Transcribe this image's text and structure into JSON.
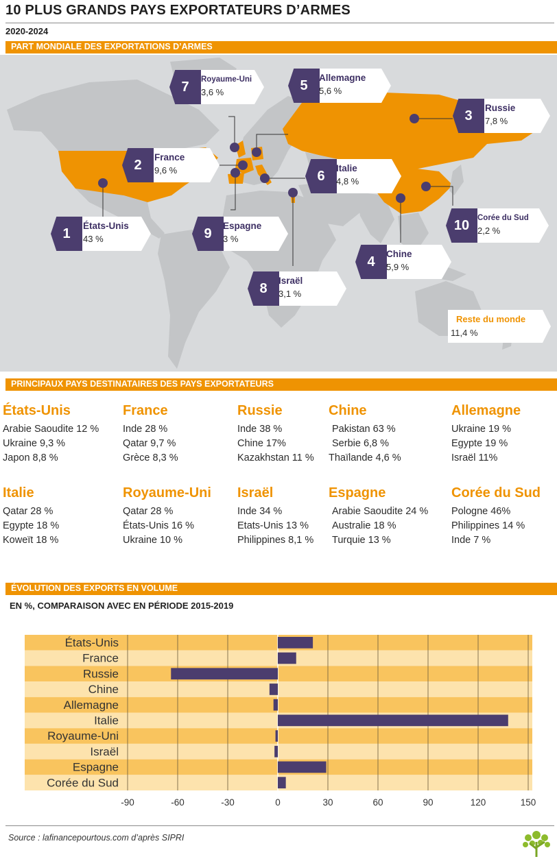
{
  "header": {
    "title": "10 PLUS GRANDS PAYS EXPORTATEURS D’ARMES",
    "period": "2020-2024"
  },
  "sections": {
    "share": "PART MONDIALE DES EXPORTATIONS D’ARMES",
    "destinations": "PRINCIPAUX PAYS DESTINATAIRES DES PAYS EXPORTATEURS",
    "evolution": "ÉVOLUTION DES EXPORTS EN VOLUME",
    "evolution_sub": "EN %, COMPARAISON AVEC EN PÉRIODE 2015-2019"
  },
  "map": {
    "colors": {
      "exporter": "#ef9302",
      "land": "#c3c5c7",
      "sea": "#d8dadc",
      "badge": "#4b3d6e"
    },
    "callouts": [
      {
        "rank": "1",
        "country": "États-Unis",
        "share": "43 %"
      },
      {
        "rank": "2",
        "country": "France",
        "share": "9,6 %"
      },
      {
        "rank": "3",
        "country": "Russie",
        "share": "7,8 %"
      },
      {
        "rank": "4",
        "country": "Chine",
        "share": "5,9 %"
      },
      {
        "rank": "5",
        "country": "Allemagne",
        "share": "5,6 %"
      },
      {
        "rank": "6",
        "country": "Italie",
        "share": "4,8 %"
      },
      {
        "rank": "7",
        "country": "Royaume-Uni",
        "share": "3,6 %"
      },
      {
        "rank": "8",
        "country": "Israël",
        "share": "3,1 %"
      },
      {
        "rank": "9",
        "country": "Espagne",
        "share": "3 %"
      },
      {
        "rank": "10",
        "country": "Corée du Sud",
        "share": "2,2 %"
      }
    ],
    "rest": {
      "label": "Reste du monde",
      "share": "11,4 %"
    }
  },
  "destinations": [
    {
      "exporter": "États-Unis",
      "rows": [
        "Arabie Saoudite 12 %",
        "Ukraine 9,3 %",
        "Japon 8,8 %"
      ]
    },
    {
      "exporter": "France",
      "rows": [
        "Inde 28 %",
        "Qatar 9,7 %",
        "Grèce 8,3 %"
      ]
    },
    {
      "exporter": "Russie",
      "rows": [
        "Inde 38 %",
        "Chine 17%",
        "Kazakhstan 11 %"
      ]
    },
    {
      "exporter": "Chine",
      "rows": [
        "Pakistan 63 %",
        "Serbie 6,8 %",
        "Thaïlande 4,6 %"
      ]
    },
    {
      "exporter": "Allemagne",
      "rows": [
        "Ukraine 19 %",
        "Egypte 19 %",
        "Israël 11%"
      ]
    },
    {
      "exporter": "Italie",
      "rows": [
        "Qatar 28 %",
        "Egypte 18 %",
        "Koweït 18 %"
      ]
    },
    {
      "exporter": "Royaume-Uni",
      "rows": [
        "Qatar 28 %",
        "États-Unis 16 %",
        "Ukraine 10 %"
      ]
    },
    {
      "exporter": "Israël",
      "rows": [
        "Inde 34 %",
        "Etats-Unis 13 %",
        "Philippines 8,1 %"
      ]
    },
    {
      "exporter": "Espagne",
      "rows": [
        "Arabie Saoudite 24 %",
        "Australie 18 %",
        "Turquie 13 %"
      ]
    },
    {
      "exporter": "Corée du Sud",
      "rows": [
        "Pologne 46%",
        "Philippines 14 %",
        "Inde 7 %"
      ]
    }
  ],
  "chart_data": {
    "type": "bar",
    "orientation": "horizontal",
    "categories": [
      "États-Unis",
      "France",
      "Russie",
      "Chine",
      "Allemagne",
      "Italie",
      "Royaume-Uni",
      "Israël",
      "Espagne",
      "Corée du Sud"
    ],
    "values": [
      21,
      11,
      -64,
      -5,
      -2.6,
      138,
      -1.4,
      -2,
      29,
      4.8
    ],
    "xlim": [
      -90,
      150
    ],
    "xticks": [
      "-90",
      "-60",
      "-30",
      "0",
      "30",
      "60",
      "90",
      "120",
      "150"
    ],
    "grid": true,
    "colors": {
      "bar": "#4b3d6e",
      "band_light": "#fde3ad",
      "band_dark": "#f9c45e"
    }
  },
  "footer": {
    "source": "Source : lafinancepourtous.com d’après SIPRI"
  }
}
